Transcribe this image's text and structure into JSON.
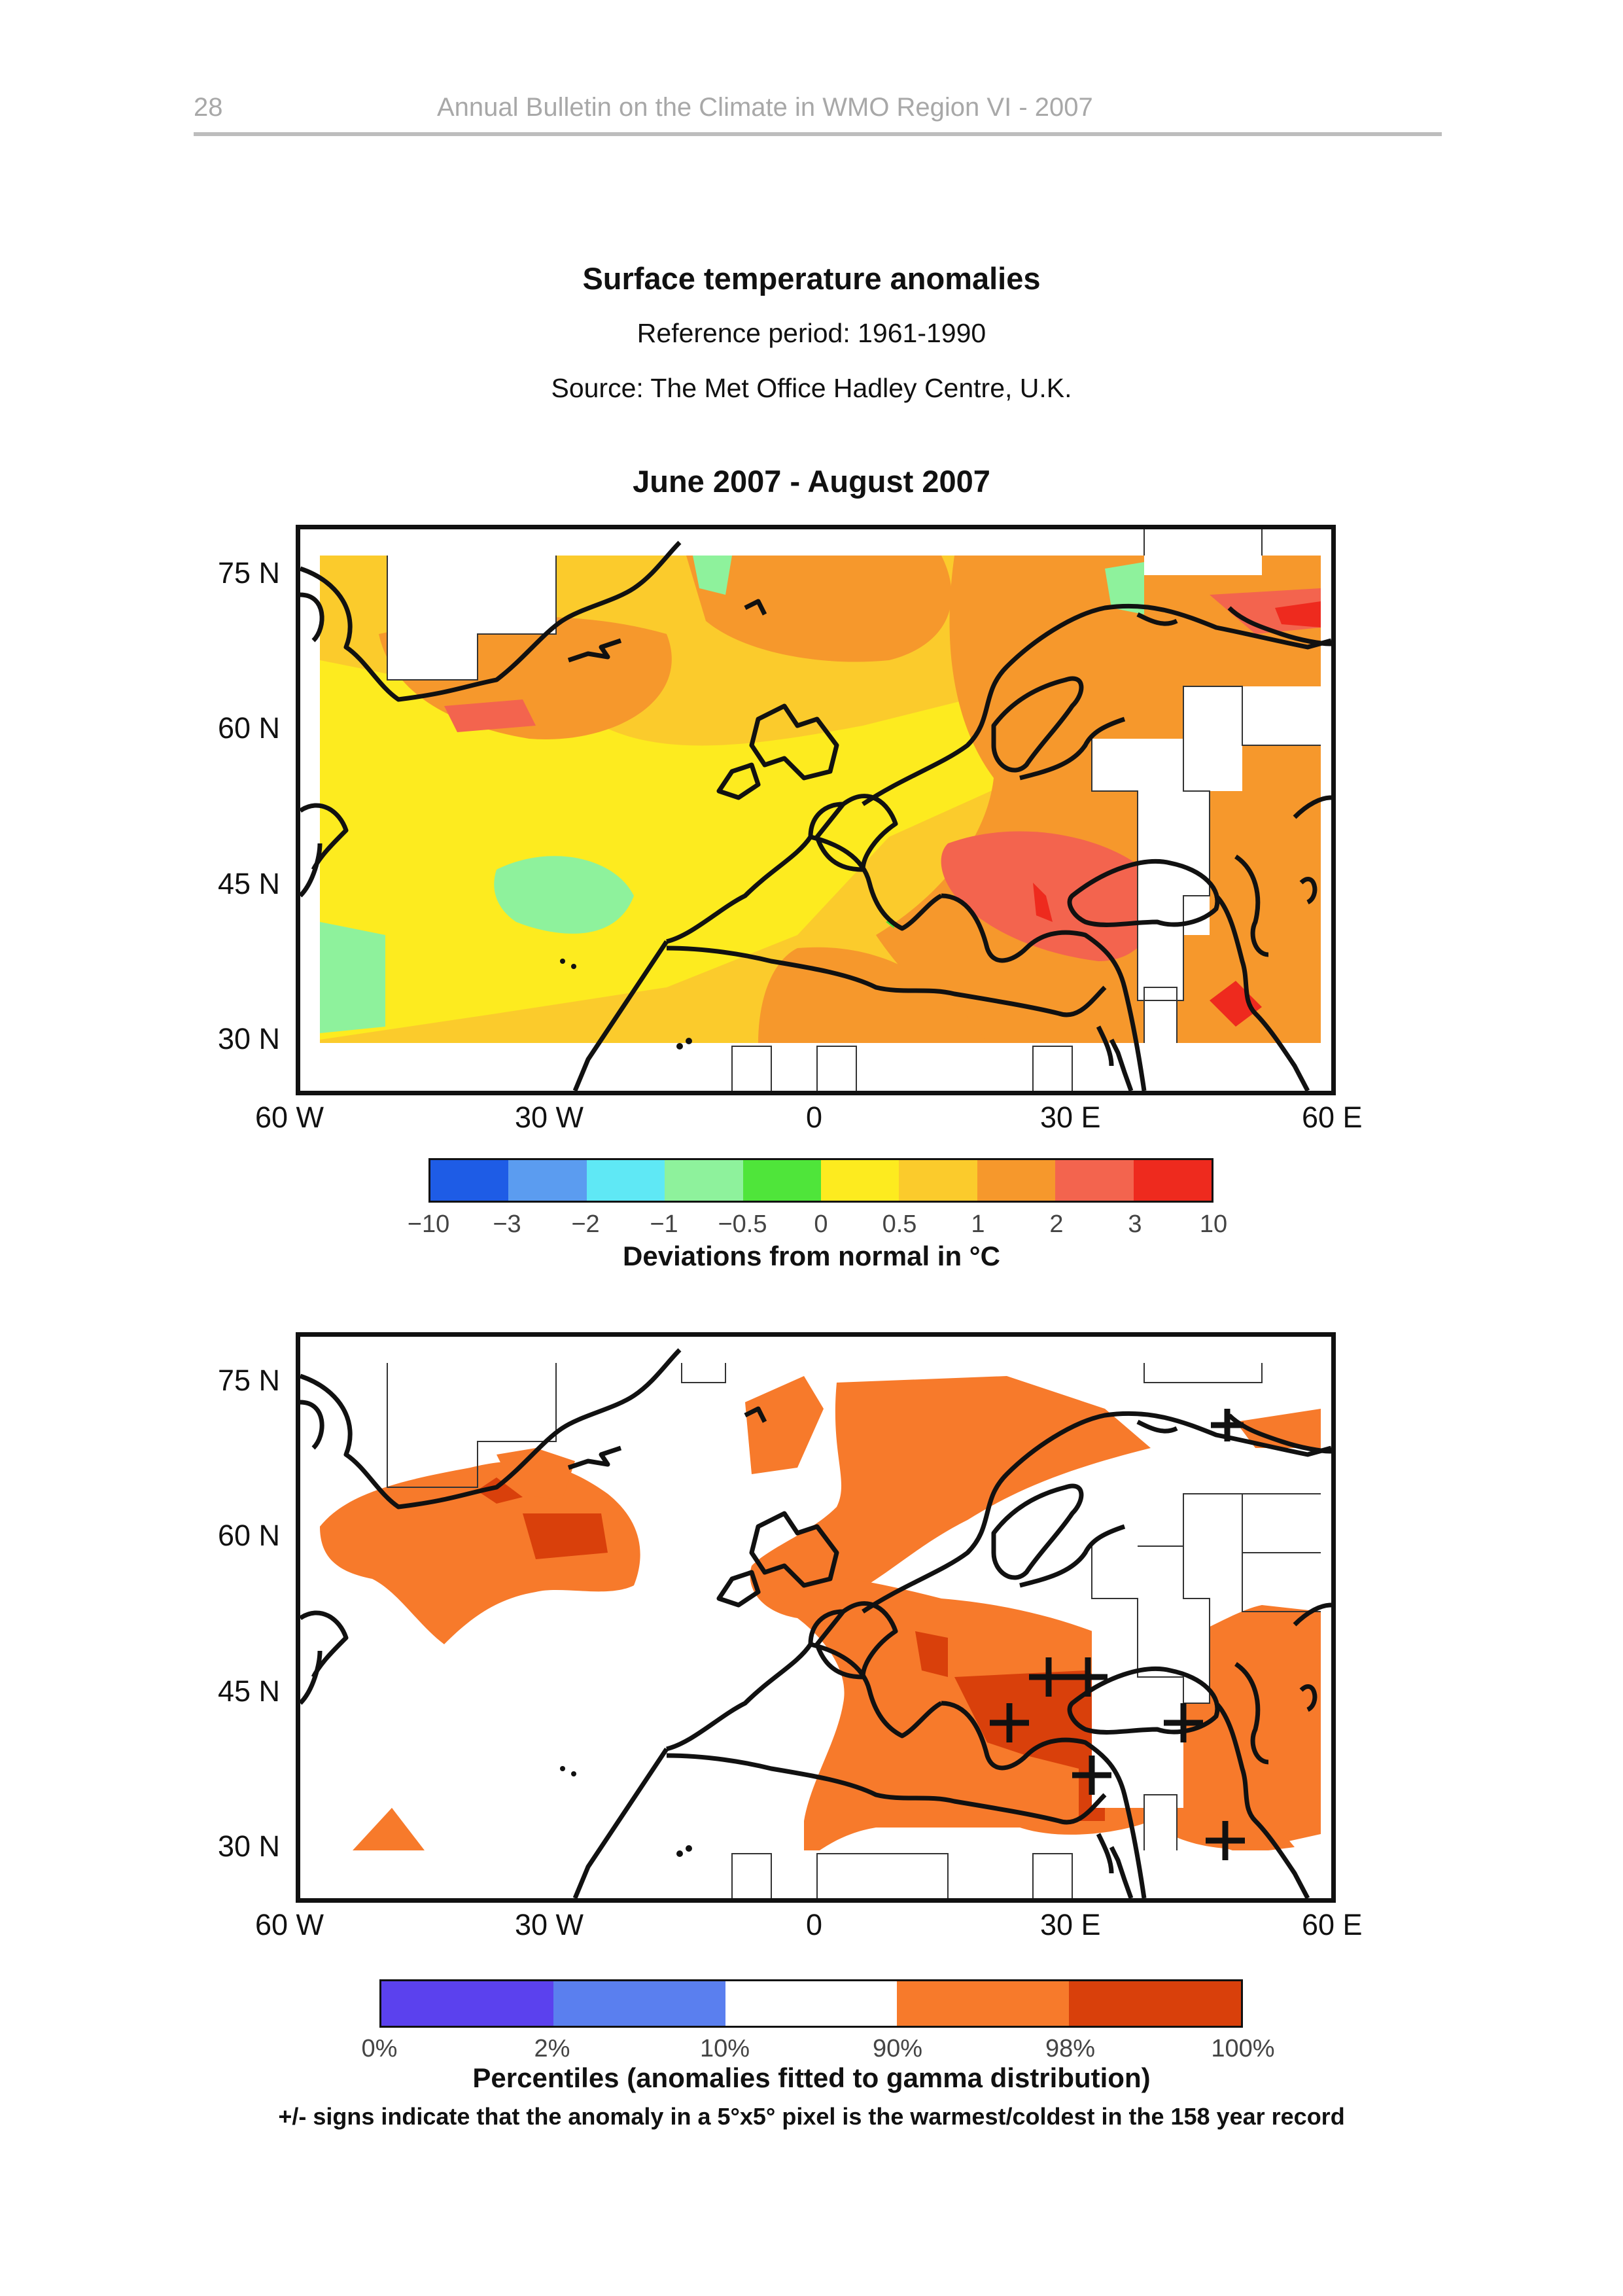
{
  "header": {
    "page_number": "28",
    "running_title": "Annual Bulletin on the Climate in WMO Region VI - 2007"
  },
  "titles": {
    "main": "Surface temperature anomalies",
    "reference": "Reference period: 1961-1990",
    "source": "Source: The Met Office Hadley Centre, U.K.",
    "period": "June 2007 - August 2007"
  },
  "axes": {
    "lat_labels": [
      "75 N",
      "60 N",
      "45 N",
      "30 N"
    ],
    "lon_labels": [
      "60 W",
      "30 W",
      "0",
      "30 E",
      "60 E"
    ]
  },
  "anomaly_legend": {
    "ticks": [
      "−10",
      "−3",
      "−2",
      "−1",
      "−0.5",
      "0",
      "0.5",
      "1",
      "2",
      "3",
      "10"
    ],
    "colors": [
      "#1e5ce6",
      "#5b9cf0",
      "#5fe8f5",
      "#8ef29c",
      "#4fe53a",
      "#fdeb1f",
      "#fbcb2c",
      "#f6982c",
      "#f3644e",
      "#ee2a1e"
    ],
    "caption": "Deviations from normal in  °C"
  },
  "percentile_legend": {
    "ticks": [
      "0%",
      "2%",
      "10%",
      "90%",
      "98%",
      "100%"
    ],
    "colors": [
      "#5b41ee",
      "#5a7fef",
      "#ffffff",
      "#f77a2b",
      "#d9400b"
    ],
    "caption": "Percentiles (anomalies fitted to gamma distribution)",
    "note": "+/- signs indicate that the anomaly in a 5°x5° pixel is the warmest/coldest in the 158 year record"
  },
  "map_colors": {
    "land_outline": "#111111",
    "background": "#ffffff"
  }
}
